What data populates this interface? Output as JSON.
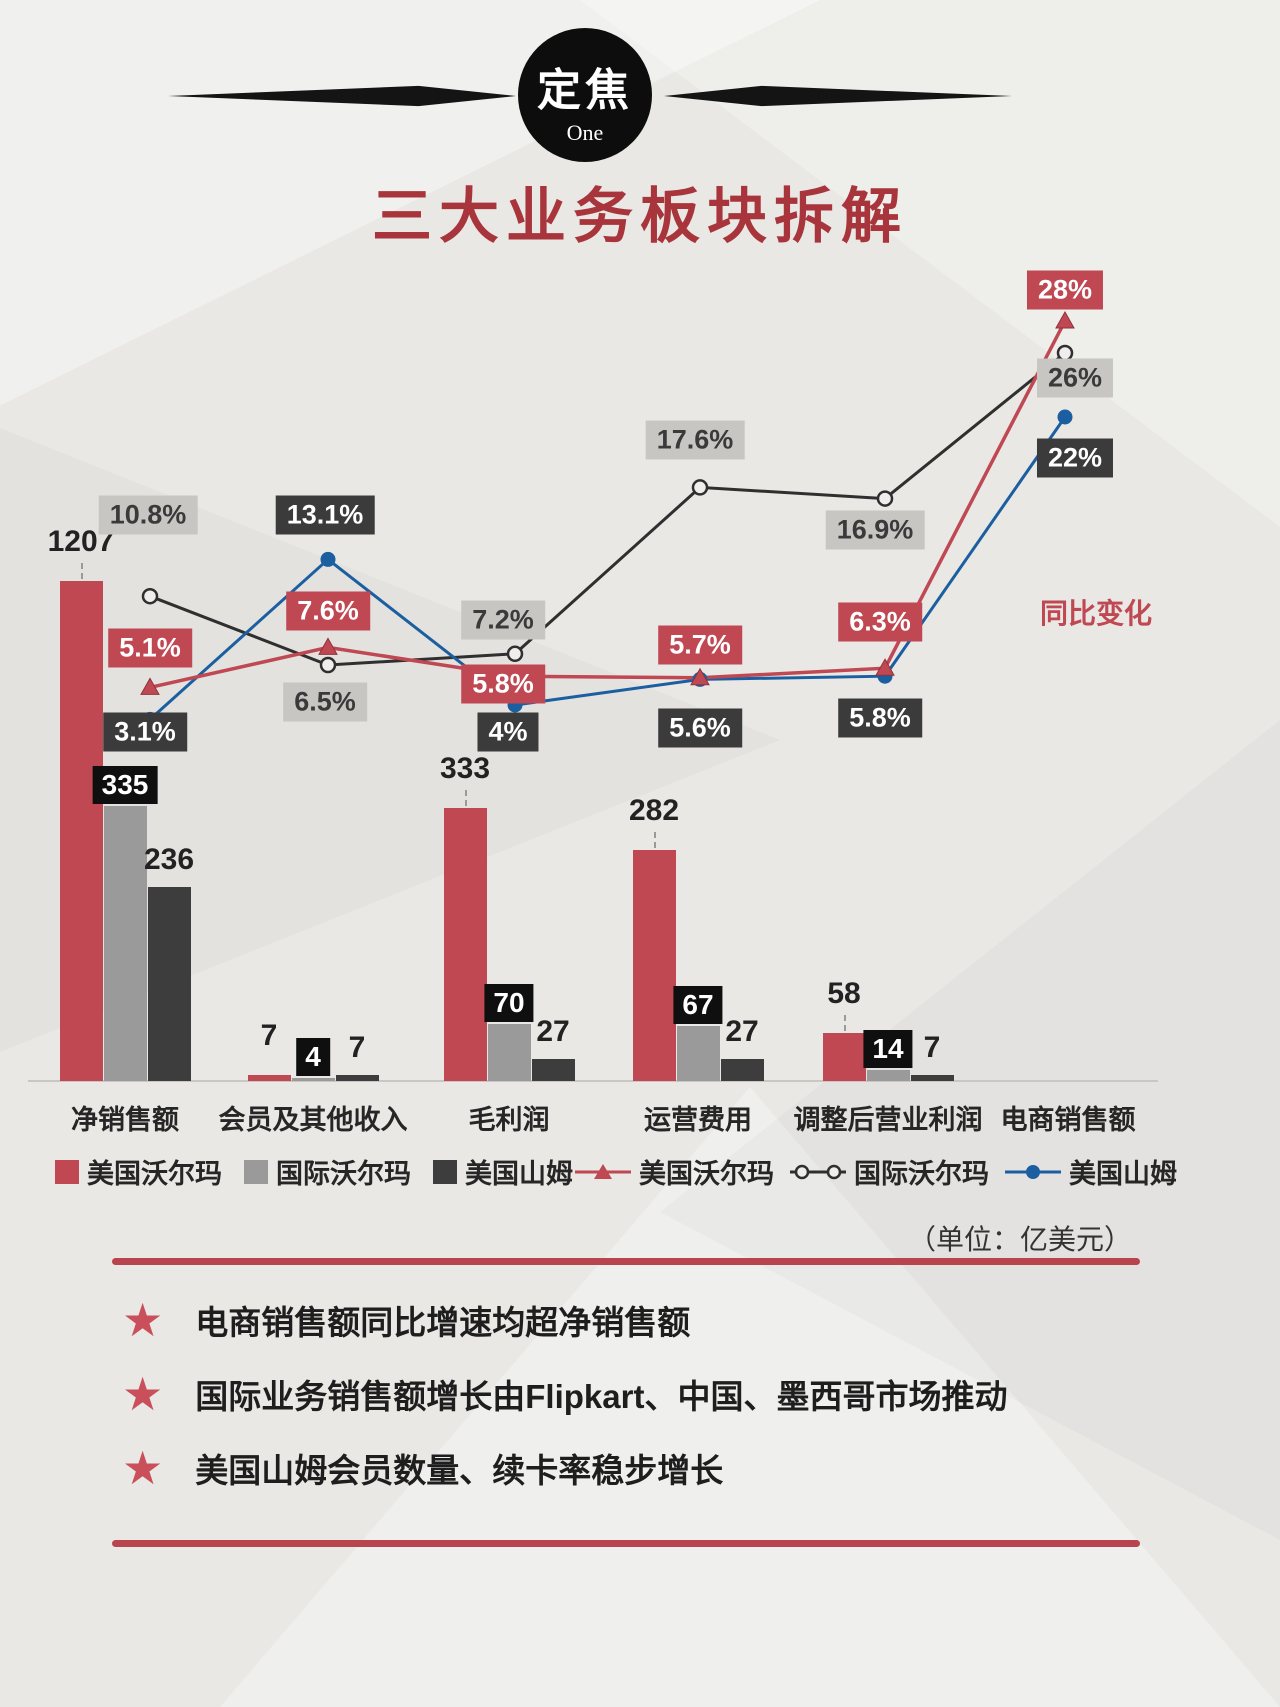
{
  "badge": {
    "title": "定焦",
    "subtitle": "One"
  },
  "page_title": "三大业务板块拆解",
  "chart_data": {
    "type": "bar+line",
    "unit_note": "（单位：亿美元）",
    "right_label": "同比变化",
    "categories": [
      "净销售额",
      "会员及其他收入",
      "毛利润",
      "运营费用",
      "调整后营业利润",
      "电商销售额"
    ],
    "bar_series": [
      {
        "name": "美国沃尔玛",
        "color": "#bf4853",
        "values": [
          1207,
          7,
          333,
          282,
          58,
          null
        ]
      },
      {
        "name": "国际沃尔玛",
        "color": "#9a9a9a",
        "values": [
          335,
          4,
          70,
          67,
          14,
          null
        ]
      },
      {
        "name": "美国山姆",
        "color": "#3d3d3d",
        "values": [
          236,
          7,
          27,
          27,
          7,
          null
        ]
      }
    ],
    "line_series": [
      {
        "name": "美国沃尔玛",
        "color": "#bf4853",
        "marker": "triangle",
        "values_pct": [
          5.1,
          7.6,
          5.8,
          5.7,
          6.3,
          28
        ],
        "labels": [
          "5.1%",
          "7.6%",
          "5.8%",
          "5.7%",
          "6.3%",
          "28%"
        ]
      },
      {
        "name": "国际沃尔玛",
        "color": "#2f2f2f",
        "marker": "open-circle",
        "values_pct": [
          10.8,
          6.5,
          7.2,
          17.6,
          16.9,
          26
        ],
        "labels": [
          "10.8%",
          "6.5%",
          "7.2%",
          "17.6%",
          "16.9%",
          "26%"
        ]
      },
      {
        "name": "美国山姆",
        "color": "#1c5fa0",
        "marker": "dot",
        "values_pct": [
          3.1,
          13.1,
          4,
          5.6,
          5.8,
          22
        ],
        "labels": [
          "3.1%",
          "13.1%",
          "4%",
          "5.6%",
          "5.8%",
          "22%"
        ]
      }
    ],
    "legend_position": "bottom",
    "grid": false
  },
  "notes": [
    "电商销售额同比增速均超净销售额",
    "国际业务销售额增长由Flipkart、中国、墨西哥市场推动",
    "美国山姆会员数量、续卡率稳步增长"
  ],
  "colors": {
    "accent_red": "#bf4853",
    "title_red": "#a8353c",
    "dark": "#3d3d3d",
    "gray": "#9a9a9a",
    "blue": "#1c5fa0",
    "label_gray_bg": "#c7c6c3",
    "label_dark_bg": "#3b3b3b"
  }
}
